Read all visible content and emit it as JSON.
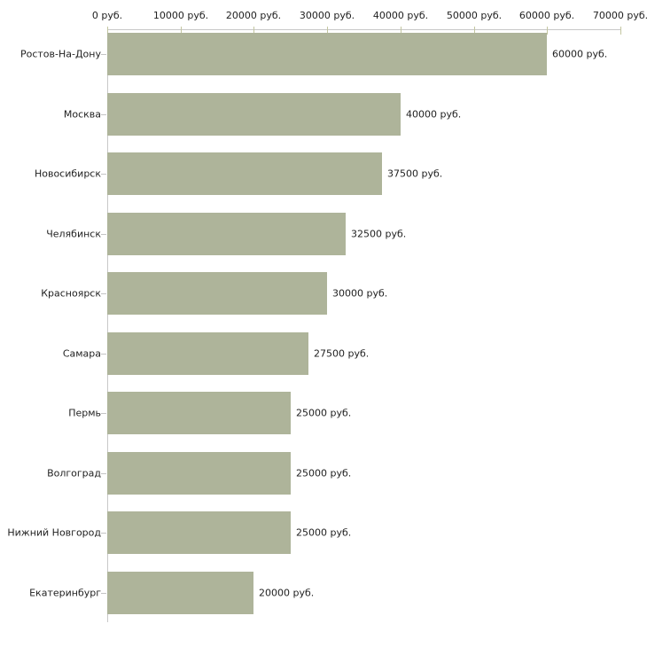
{
  "chart_data": {
    "type": "bar",
    "orientation": "horizontal",
    "title": "",
    "xlabel": "",
    "ylabel": "",
    "categories": [
      "Ростов-На-Дону",
      "Москва",
      "Новосибирск",
      "Челябинск",
      "Красноярск",
      "Самара",
      "Пермь",
      "Волгоград",
      "Нижний Новгород",
      "Екатеринбург"
    ],
    "values": [
      60000,
      40000,
      37500,
      32500,
      30000,
      27500,
      25000,
      25000,
      25000,
      20000
    ],
    "value_labels": [
      "60000 руб.",
      "40000 руб.",
      "37500 руб.",
      "32500 руб.",
      "30000 руб.",
      "27500 руб.",
      "25000 руб.",
      "25000 руб.",
      "25000 руб.",
      "20000 руб."
    ],
    "x_axis": {
      "position": "top",
      "range": [
        0,
        70000
      ],
      "ticks": [
        0,
        10000,
        20000,
        30000,
        40000,
        50000,
        60000,
        70000
      ],
      "tick_labels": [
        "0 руб.",
        "10000 руб.",
        "20000 руб.",
        "30000 руб.",
        "40000 руб.",
        "50000 руб.",
        "60000 руб.",
        "70000 руб."
      ]
    },
    "legend": null,
    "grid": false,
    "colors": {
      "bar": "#aeb49a",
      "axis": "#c8c8c8",
      "x_tick": "#c3c6a0",
      "category_tick": "#c4c4c4",
      "text": "#1f1f1f",
      "background": "#ffffff"
    }
  }
}
